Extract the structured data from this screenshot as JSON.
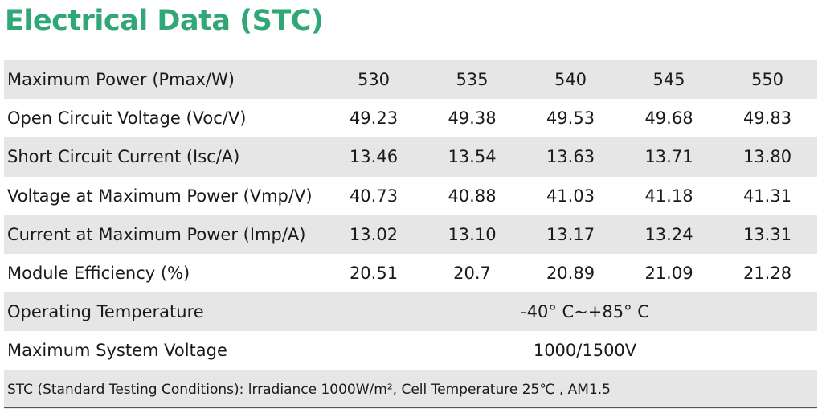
{
  "title": "Electrical Data (STC)",
  "table": {
    "rows": [
      {
        "label": "Maximum Power (Pmax/W)",
        "values": [
          "530",
          "535",
          "540",
          "545",
          "550"
        ]
      },
      {
        "label": "Open Circuit Voltage (Voc/V)",
        "values": [
          "49.23",
          "49.38",
          "49.53",
          "49.68",
          "49.83"
        ]
      },
      {
        "label": "Short Circuit Current (Isc/A)",
        "values": [
          "13.46",
          "13.54",
          "13.63",
          "13.71",
          "13.80"
        ]
      },
      {
        "label": "Voltage at Maximum Power (Vmp/V)",
        "values": [
          "40.73",
          "40.88",
          "41.03",
          "41.18",
          "41.31"
        ]
      },
      {
        "label": "Current at Maximum Power  (Imp/A)",
        "values": [
          "13.02",
          "13.10",
          "13.17",
          "13.24",
          "13.31"
        ]
      },
      {
        "label": "Module Efficiency (%)",
        "values": [
          "20.51",
          "20.7",
          "20.89",
          "21.09",
          "21.28"
        ]
      },
      {
        "label": "Operating Temperature",
        "value": "-40° C~+85° C"
      },
      {
        "label": "Maximum System Voltage",
        "value": "1000/1500V"
      }
    ],
    "footnote": "STC (Standard Testing Conditions): lrradiance 1000W/m², Cell Temperature 25℃ , AM1.5"
  }
}
